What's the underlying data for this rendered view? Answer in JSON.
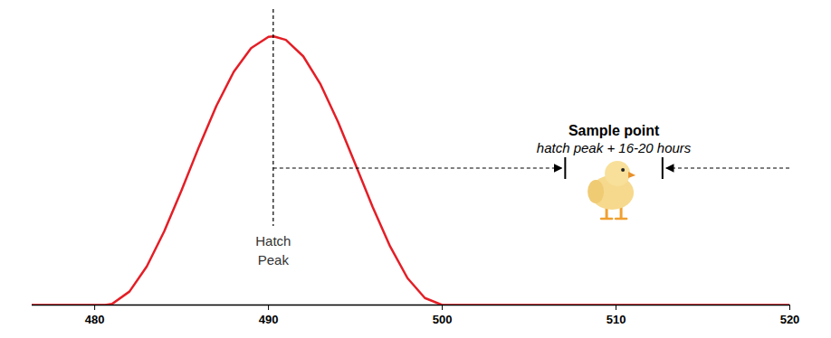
{
  "chart_data": {
    "type": "line",
    "x": [
      476.4,
      480.6,
      481,
      482,
      483,
      484,
      485,
      486,
      487,
      488,
      489,
      490,
      490.3,
      491,
      492,
      493,
      494,
      495,
      496,
      497,
      498,
      499,
      500,
      520
    ],
    "values": [
      0,
      0,
      0.4,
      5.0,
      14.4,
      27.4,
      42.7,
      58.9,
      74.1,
      86.8,
      95.6,
      99.8,
      100,
      98.7,
      92.6,
      82.1,
      68.2,
      52.4,
      36.4,
      21.8,
      10.0,
      2.6,
      0,
      0
    ],
    "color": "#e41e26",
    "xlim": [
      476.4,
      520
    ],
    "xticks": [
      480,
      490,
      500,
      510,
      520
    ],
    "ylim": [
      0,
      110
    ],
    "tick_labels": "x",
    "annotations": {
      "peak": {
        "x": 490.3,
        "label": [
          "Hatch",
          "Peak"
        ]
      },
      "sample": {
        "title": "Sample point",
        "subtitle": "hatch peak + 16-20 hours",
        "window": [
          507.1,
          512.7
        ]
      }
    }
  }
}
